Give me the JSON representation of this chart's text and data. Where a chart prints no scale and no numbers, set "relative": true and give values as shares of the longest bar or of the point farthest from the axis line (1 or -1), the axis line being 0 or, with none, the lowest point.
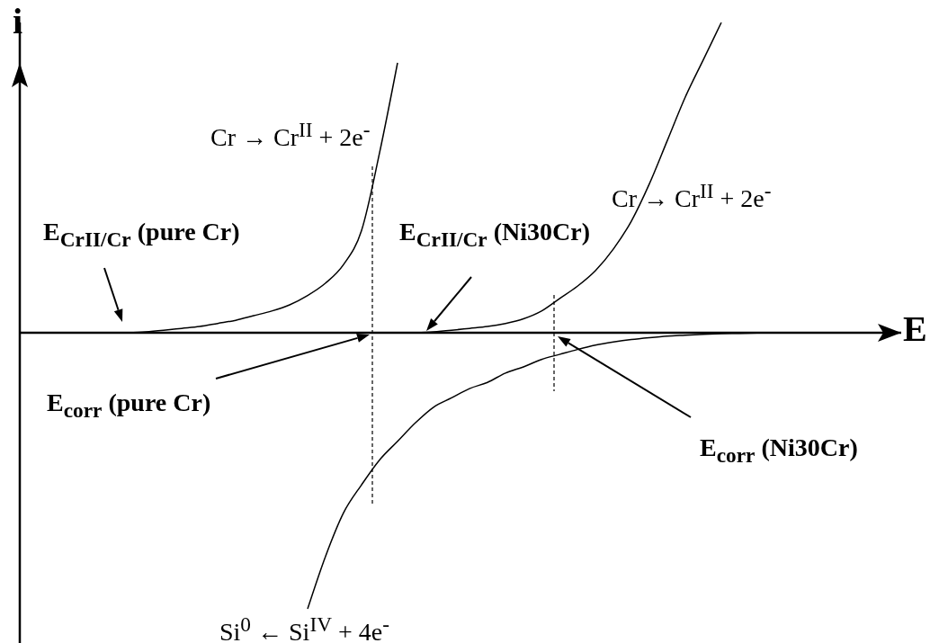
{
  "chart_data": {
    "type": "line",
    "relative": true,
    "xlabel": "E",
    "ylabel": "i",
    "categories": [
      null,
      null,
      null,
      null,
      null,
      null,
      null,
      null,
      null,
      null,
      null,
      null,
      null,
      null,
      null,
      null,
      null,
      null,
      null,
      null,
      null,
      null,
      null,
      null,
      null,
      null,
      null,
      null,
      null,
      null,
      null,
      null,
      null,
      null,
      null,
      null,
      null,
      null,
      null,
      null,
      null,
      null,
      null,
      null,
      null,
      null,
      null,
      null,
      null,
      null
    ],
    "series": [
      {
        "color": "#000000",
        "values": [
          null,
          null,
          null,
          null,
          null,
          null,
          0,
          0.003,
          0.008,
          0.014,
          0.02,
          0.03,
          0.04,
          0.055,
          0.07,
          0.09,
          0.12,
          0.16,
          0.22,
          0.33,
          0.58,
          0.87,
          null,
          null,
          null,
          null,
          null,
          null,
          null,
          null,
          null,
          null,
          null,
          null,
          null,
          null,
          null,
          null,
          null,
          null,
          null,
          null,
          null,
          null,
          null,
          null,
          null,
          null,
          null,
          null
        ]
      },
      {
        "color": "#000000",
        "values": [
          null,
          null,
          null,
          null,
          null,
          null,
          null,
          null,
          null,
          null,
          null,
          null,
          null,
          null,
          null,
          null,
          null,
          null,
          null,
          null,
          null,
          null,
          0,
          0.003,
          0.008,
          0.014,
          0.02,
          0.03,
          0.045,
          0.07,
          0.11,
          0.15,
          0.2,
          0.27,
          0.36,
          0.48,
          0.62,
          0.76,
          0.88,
          1.0,
          null,
          null,
          null,
          null,
          null,
          null,
          null,
          null,
          null,
          null
        ]
      },
      {
        "color": "#000000",
        "values": [
          null,
          null,
          null,
          null,
          null,
          null,
          null,
          null,
          null,
          null,
          null,
          null,
          null,
          null,
          null,
          null,
          -0.89,
          -0.72,
          -0.58,
          -0.49,
          -0.41,
          -0.35,
          -0.29,
          -0.24,
          -0.21,
          -0.18,
          -0.16,
          -0.13,
          -0.11,
          -0.086,
          -0.07,
          -0.054,
          -0.04,
          -0.03,
          -0.022,
          -0.016,
          -0.011,
          -0.008,
          -0.005,
          -0.003,
          -0.002,
          -0.001,
          0,
          null,
          null,
          null,
          null,
          null,
          null,
          null
        ]
      }
    ],
    "annotations": [
      "Cr → Cr$^{II}$ + 2e$^{-}$",
      "Cr → Cr$^{II}$ + 2e$^{-}$",
      "E$_{CrII/Cr}$ (pure Cr)",
      "E$_{CrII/Cr}$ (Ni30Cr)",
      "E$_{corr}$ (pure Cr)",
      "E$_{corr}$ (Ni30Cr)",
      "Si$^{0}$ ← Si$^{IV}$ + 4e$^{-}$"
    ]
  }
}
